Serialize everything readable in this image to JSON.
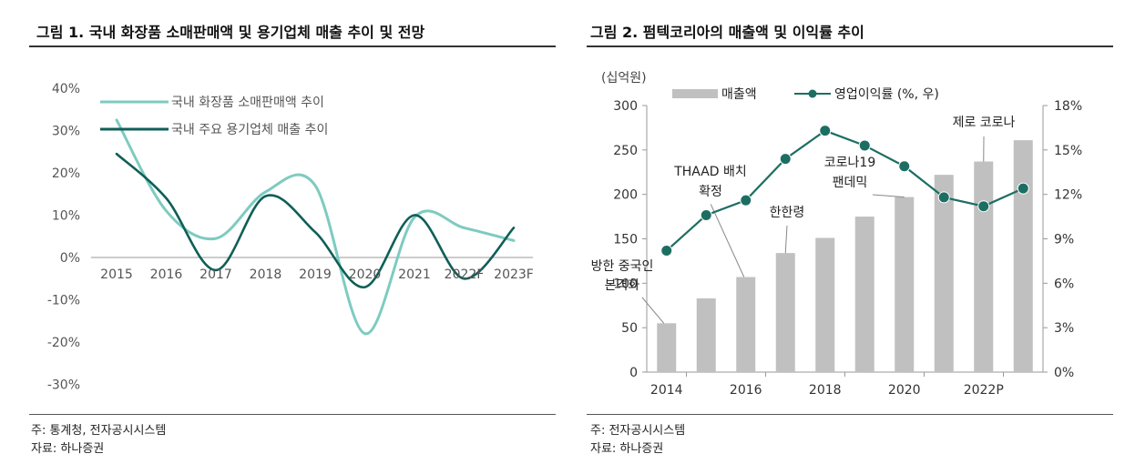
{
  "left_panel": {
    "title": "그림 1. 국내 화장품 소매판매액 및 용기업체 매출 추이 및 전망",
    "note": "주: 통계청, 전자공시시스템",
    "source": "자료: 하나증권"
  },
  "right_panel": {
    "title": "그림 2. 펌텍코리아의 매출액 및 이익률 추이",
    "note": "주: 전자공시시스템",
    "source": "자료: 하나증권"
  },
  "colors": {
    "retail_line": "#7ecbc0",
    "packaging_line": "#0f5f57",
    "bar_fill": "#c0c0c0",
    "margin_line": "#1d6e62",
    "axis": "#999999"
  },
  "chart_data": [
    {
      "type": "line",
      "title": "그림 1. 국내 화장품 소매판매액 및 용기업체 매출 추이 및 전망",
      "categories": [
        "2015",
        "2016",
        "2017",
        "2018",
        "2019",
        "2020",
        "2021",
        "2022F",
        "2023F"
      ],
      "y_ticks": [
        "40%",
        "30%",
        "20%",
        "10%",
        "0%",
        "-10%",
        "-20%",
        "-30%"
      ],
      "ylim": [
        -30,
        40
      ],
      "series": [
        {
          "name": "국내 화장품 소매판매액 추이",
          "values": [
            32.5,
            11,
            4.5,
            15.5,
            17,
            -18,
            9.5,
            7,
            4
          ]
        },
        {
          "name": "국내 주요 용기업체 매출 추이",
          "values": [
            24.5,
            14,
            -3,
            14.5,
            6,
            -7,
            10,
            -5,
            7
          ]
        }
      ],
      "legend_position": "top"
    },
    {
      "type": "bar+line",
      "title": "그림 2. 펌텍코리아의 매출액 및 이익률 추이",
      "unit_label": "(십억원)",
      "x": [
        "2014",
        "2015",
        "2016",
        "2017",
        "2018",
        "2019",
        "2020",
        "2021",
        "2022P",
        "2023"
      ],
      "x_tick_labels": [
        "2014",
        "2016",
        "2018",
        "2020",
        "2022P"
      ],
      "left_axis": {
        "ticks": [
          "300",
          "250",
          "200",
          "150",
          "100",
          "50",
          "0"
        ],
        "ylim": [
          0,
          300
        ]
      },
      "right_axis": {
        "ticks": [
          "18%",
          "15%",
          "12%",
          "9%",
          "6%",
          "3%",
          "0%"
        ],
        "ylim": [
          0,
          18
        ]
      },
      "series": [
        {
          "name": "매출액",
          "kind": "bar",
          "values": [
            55,
            83,
            107,
            134,
            151,
            175,
            197,
            222,
            237,
            261
          ]
        },
        {
          "name": "영업이익률 (%, 우)",
          "kind": "line",
          "values": [
            8.2,
            10.6,
            11.6,
            14.4,
            16.3,
            15.3,
            13.9,
            11.8,
            11.2,
            12.4
          ]
        }
      ],
      "annotations": [
        {
          "text_lines": [
            "방한 중국인",
            "본격화"
          ],
          "year": "2014"
        },
        {
          "text_lines": [
            "THAAD 배치",
            "확정"
          ],
          "year": "2016"
        },
        {
          "text_lines": [
            "한한령"
          ],
          "year": "2017"
        },
        {
          "text_lines": [
            "코로나19",
            "팬데믹"
          ],
          "year": "2020"
        },
        {
          "text_lines": [
            "제로 코로나"
          ],
          "year": "2022P"
        }
      ],
      "legend_position": "top"
    }
  ]
}
